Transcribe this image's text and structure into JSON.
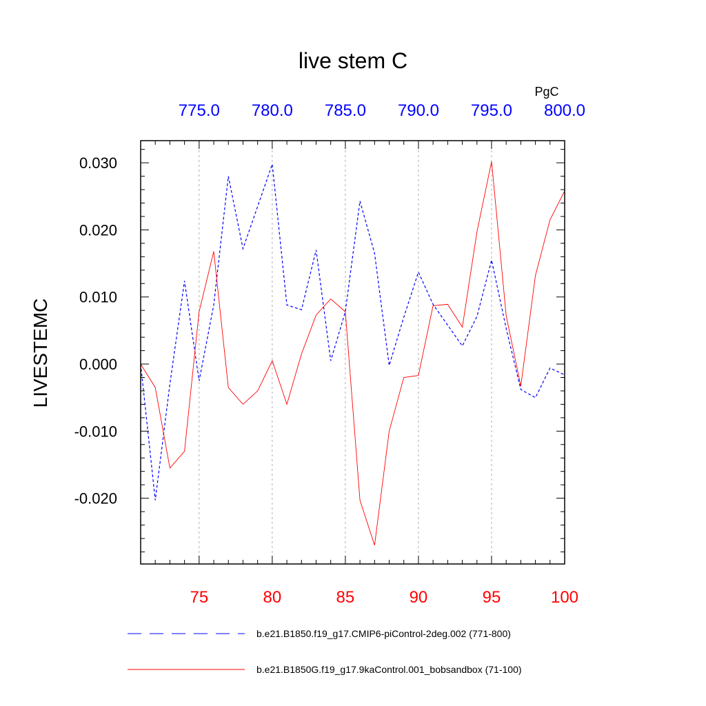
{
  "chart_data": {
    "type": "line",
    "title": "live stem C",
    "units": "PgC",
    "ylabel": "LIVESTEMC",
    "ylim": [
      -0.0298,
      0.0333
    ],
    "y_ticks": [
      -0.02,
      -0.01,
      0.0,
      0.01,
      0.02,
      0.03
    ],
    "y_tick_labels": [
      "-0.020",
      "-0.010",
      "0.000",
      "0.010",
      "0.020",
      "0.030"
    ],
    "y_minor_step": 0.002,
    "bottom_axis": {
      "range": [
        71,
        100
      ],
      "ticks": [
        75,
        80,
        85,
        90,
        95,
        100
      ],
      "tick_labels": [
        "75",
        "80",
        "85",
        "90",
        "95",
        "100"
      ],
      "color": "#ff0000"
    },
    "top_axis": {
      "range": [
        771,
        800
      ],
      "ticks": [
        775,
        780,
        785,
        790,
        795,
        800
      ],
      "tick_labels": [
        "775.0",
        "780.0",
        "785.0",
        "790.0",
        "795.0",
        "800.0"
      ],
      "color": "#0000ff"
    },
    "gridlines_x": [
      75,
      80,
      85,
      90,
      95
    ],
    "series": [
      {
        "name": "b.e21.B1850.f19_g17.CMIP6-piControl-2deg.002 (771-800)",
        "color": "#0000ff",
        "dash": "dashed",
        "axis": "top",
        "x": [
          771,
          772,
          773,
          774,
          775,
          776,
          777,
          778,
          779,
          780,
          781,
          782,
          783,
          784,
          785,
          786,
          787,
          788,
          789,
          790,
          791,
          792,
          793,
          794,
          795,
          796,
          797,
          798,
          799,
          800
        ],
        "values": [
          0.0,
          -0.0203,
          -0.003,
          0.0124,
          -0.0025,
          0.0088,
          0.028,
          0.0172,
          0.0235,
          0.0298,
          0.0088,
          0.0081,
          0.017,
          0.0005,
          0.0078,
          0.0243,
          0.0165,
          -0.0002,
          0.007,
          0.0137,
          0.0089,
          0.0058,
          0.0027,
          0.0071,
          0.0155,
          0.0053,
          -0.0038,
          -0.005,
          -0.0006,
          -0.0016
        ]
      },
      {
        "name": "b.e21.B1850G.f19_g17.9kaControl.001_bobsandbox (71-100)",
        "color": "#ff0000",
        "dash": "solid",
        "axis": "bottom",
        "x": [
          71,
          72,
          73,
          74,
          75,
          76,
          77,
          78,
          79,
          80,
          81,
          82,
          83,
          84,
          85,
          86,
          87,
          88,
          89,
          90,
          91,
          92,
          93,
          94,
          95,
          96,
          97,
          98,
          99,
          100
        ],
        "values": [
          0.0,
          -0.0035,
          -0.0155,
          -0.013,
          0.0078,
          0.0168,
          -0.0035,
          -0.006,
          -0.004,
          0.0005,
          -0.006,
          0.0015,
          0.0073,
          0.0097,
          0.0078,
          -0.0203,
          -0.027,
          -0.01,
          -0.002,
          -0.0017,
          0.0087,
          0.0089,
          0.0055,
          0.0197,
          0.0302,
          0.0072,
          -0.0033,
          0.0132,
          0.0215,
          0.0258
        ]
      }
    ]
  }
}
